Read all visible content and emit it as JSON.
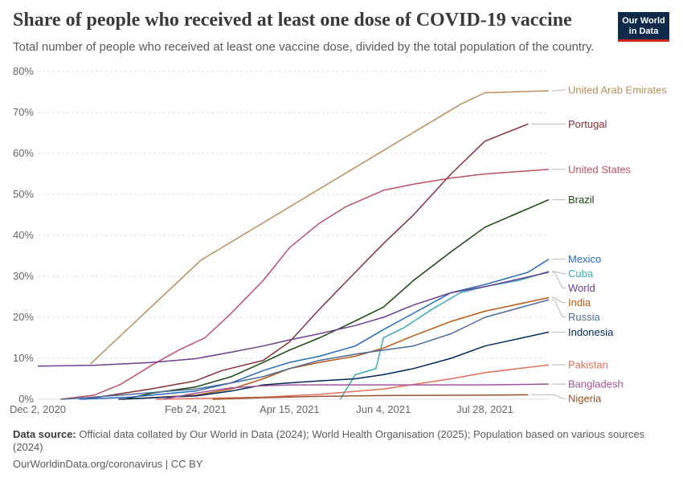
{
  "header": {
    "title": "Share of people who received at least one dose of COVID-19 vaccine",
    "subtitle": "Total number of people who received at least one vaccine dose, divided by the total population of the country.",
    "logo_line1": "Our World",
    "logo_line2": "in Data"
  },
  "footer": {
    "source_label": "Data source:",
    "source_text": "Official data collated by Our World in Data (2024); World Health Organisation (2025); Population based on various sources (2024)",
    "credit": "OurWorldinData.org/coronavirus | CC BY"
  },
  "colors": {
    "grid": "#dddddd",
    "axis_text": "#666666",
    "leader_line": "#bbbbbb"
  },
  "chart_data": {
    "type": "line",
    "title": "Share of people who received at least one dose of COVID-19 vaccine",
    "subtitle": "Total number of people who received at least one vaccine dose, divided by the total population of the country.",
    "x_start": "2020-12-02",
    "x_end": "2021-08-31",
    "x_ticks": [
      {
        "date": "2020-12-02",
        "label": "Dec 2, 2020"
      },
      {
        "date": "2021-02-24",
        "label": "Feb 24, 2021"
      },
      {
        "date": "2021-04-15",
        "label": "Apr 15, 2021"
      },
      {
        "date": "2021-06-04",
        "label": "Jun 4, 2021"
      },
      {
        "date": "2021-07-28",
        "label": "Jul 28, 2021"
      }
    ],
    "ylim": [
      0,
      80
    ],
    "y_ticks": [
      0,
      10,
      20,
      30,
      40,
      50,
      60,
      70,
      80
    ],
    "y_tick_suffix": "%",
    "grid": true,
    "legend": "right",
    "series": [
      {
        "name": "United Arab Emirates",
        "color": "#bc8e5a",
        "label_y": 75.5,
        "points": [
          [
            "2020-12-30",
            8.6
          ],
          [
            "2021-02-27",
            34
          ],
          [
            "2021-07-15",
            72
          ],
          [
            "2021-07-28",
            74.8
          ],
          [
            "2021-08-31",
            75.3
          ]
        ]
      },
      {
        "name": "Portugal",
        "color": "#883039",
        "label_y": 67.2,
        "points": [
          [
            "2020-12-27",
            0
          ],
          [
            "2021-01-10",
            1
          ],
          [
            "2021-01-31",
            2.5
          ],
          [
            "2021-02-24",
            4.5
          ],
          [
            "2021-03-10",
            7
          ],
          [
            "2021-04-01",
            9.5
          ],
          [
            "2021-04-15",
            14
          ],
          [
            "2021-05-01",
            22
          ],
          [
            "2021-05-20",
            31
          ],
          [
            "2021-06-04",
            38
          ],
          [
            "2021-06-20",
            45
          ],
          [
            "2021-07-10",
            55
          ],
          [
            "2021-07-28",
            63
          ],
          [
            "2021-08-20",
            67.2
          ]
        ]
      },
      {
        "name": "United States",
        "color": "#c15065",
        "label_y": 56.1,
        "points": [
          [
            "2020-12-14",
            0
          ],
          [
            "2021-01-01",
            1
          ],
          [
            "2021-01-15",
            3.6
          ],
          [
            "2021-02-01",
            8.4
          ],
          [
            "2021-02-15",
            12
          ],
          [
            "2021-03-01",
            15
          ],
          [
            "2021-03-15",
            21
          ],
          [
            "2021-04-01",
            29
          ],
          [
            "2021-04-15",
            37
          ],
          [
            "2021-05-01",
            43
          ],
          [
            "2021-05-15",
            47
          ],
          [
            "2021-06-04",
            51
          ],
          [
            "2021-06-20",
            52.5
          ],
          [
            "2021-07-10",
            54
          ],
          [
            "2021-07-28",
            55
          ],
          [
            "2021-08-31",
            56.1
          ]
        ]
      },
      {
        "name": "Brazil",
        "color": "#18470f",
        "label_y": 48.7,
        "points": [
          [
            "2021-01-17",
            0
          ],
          [
            "2021-02-01",
            1.5
          ],
          [
            "2021-02-24",
            3
          ],
          [
            "2021-03-15",
            5.5
          ],
          [
            "2021-04-01",
            9
          ],
          [
            "2021-04-15",
            12
          ],
          [
            "2021-05-01",
            15
          ],
          [
            "2021-05-15",
            18
          ],
          [
            "2021-06-04",
            22.5
          ],
          [
            "2021-06-20",
            29
          ],
          [
            "2021-07-10",
            36
          ],
          [
            "2021-07-28",
            42
          ],
          [
            "2021-08-31",
            48.7
          ]
        ]
      },
      {
        "name": "Mexico",
        "color": "#286bbb",
        "label_y": 34.2,
        "points": [
          [
            "2020-12-24",
            0
          ],
          [
            "2021-01-20",
            0.5
          ],
          [
            "2021-02-24",
            2
          ],
          [
            "2021-03-15",
            4
          ],
          [
            "2021-04-01",
            7
          ],
          [
            "2021-04-15",
            9
          ],
          [
            "2021-05-01",
            10.5
          ],
          [
            "2021-05-20",
            13
          ],
          [
            "2021-06-04",
            17
          ],
          [
            "2021-06-20",
            21
          ],
          [
            "2021-07-10",
            26
          ],
          [
            "2021-07-28",
            28
          ],
          [
            "2021-08-20",
            31
          ],
          [
            "2021-08-31",
            34.2
          ]
        ]
      },
      {
        "name": "Cuba",
        "color": "#38aaba",
        "label_y": 31.5,
        "points": [
          [
            "2021-05-12",
            0
          ],
          [
            "2021-05-20",
            6
          ],
          [
            "2021-05-31",
            7.5
          ],
          [
            "2021-06-04",
            15
          ],
          [
            "2021-06-15",
            17.5
          ],
          [
            "2021-06-30",
            22
          ],
          [
            "2021-07-15",
            26
          ],
          [
            "2021-07-28",
            27.5
          ],
          [
            "2021-08-15",
            29
          ],
          [
            "2021-08-31",
            31.2
          ]
        ]
      },
      {
        "name": "World",
        "color": "#6d3e91",
        "label_y": 31.0,
        "points": [
          [
            "2020-12-02",
            8.1
          ],
          [
            "2021-01-01",
            8.3
          ],
          [
            "2021-02-01",
            9
          ],
          [
            "2021-02-24",
            9.9
          ],
          [
            "2021-03-15",
            11.5
          ],
          [
            "2021-04-01",
            13
          ],
          [
            "2021-04-15",
            14.5
          ],
          [
            "2021-05-01",
            16
          ],
          [
            "2021-05-20",
            18
          ],
          [
            "2021-06-04",
            20
          ],
          [
            "2021-06-20",
            23
          ],
          [
            "2021-07-10",
            26
          ],
          [
            "2021-07-28",
            27.5
          ],
          [
            "2021-08-31",
            31
          ]
        ]
      },
      {
        "name": "India",
        "color": "#be5915",
        "label_y": 24.8,
        "points": [
          [
            "2021-01-16",
            0
          ],
          [
            "2021-02-24",
            1
          ],
          [
            "2021-03-15",
            2.5
          ],
          [
            "2021-04-01",
            5
          ],
          [
            "2021-04-15",
            7.5
          ],
          [
            "2021-05-01",
            9
          ],
          [
            "2021-05-20",
            10.5
          ],
          [
            "2021-06-04",
            12.5
          ],
          [
            "2021-06-20",
            15.5
          ],
          [
            "2021-07-10",
            19
          ],
          [
            "2021-07-28",
            21.5
          ],
          [
            "2021-08-31",
            24.8
          ]
        ]
      },
      {
        "name": "Russia",
        "color": "#4c6a9c",
        "label_y": 24.3,
        "points": [
          [
            "2020-12-15",
            0
          ],
          [
            "2021-01-15",
            1
          ],
          [
            "2021-02-24",
            2.5
          ],
          [
            "2021-03-15",
            4
          ],
          [
            "2021-04-01",
            5.5
          ],
          [
            "2021-04-15",
            7.5
          ],
          [
            "2021-05-01",
            9.5
          ],
          [
            "2021-05-20",
            11
          ],
          [
            "2021-06-04",
            12
          ],
          [
            "2021-06-20",
            13
          ],
          [
            "2021-07-10",
            16
          ],
          [
            "2021-07-28",
            20
          ],
          [
            "2021-08-31",
            24.3
          ]
        ]
      },
      {
        "name": "Indonesia",
        "color": "#00295b",
        "label_y": 16.4,
        "points": [
          [
            "2021-01-14",
            0
          ],
          [
            "2021-02-24",
            0.8
          ],
          [
            "2021-03-15",
            2
          ],
          [
            "2021-04-01",
            3.5
          ],
          [
            "2021-04-15",
            4
          ],
          [
            "2021-05-01",
            4.5
          ],
          [
            "2021-05-20",
            5
          ],
          [
            "2021-06-04",
            6
          ],
          [
            "2021-06-20",
            7.5
          ],
          [
            "2021-07-10",
            10
          ],
          [
            "2021-07-28",
            13
          ],
          [
            "2021-08-31",
            16.4
          ]
        ]
      },
      {
        "name": "Pakistan",
        "color": "#e56e5a",
        "label_y": 8.4,
        "points": [
          [
            "2021-02-03",
            0
          ],
          [
            "2021-04-01",
            0.5
          ],
          [
            "2021-05-01",
            1.2
          ],
          [
            "2021-06-04",
            2.5
          ],
          [
            "2021-07-10",
            5
          ],
          [
            "2021-07-28",
            6.5
          ],
          [
            "2021-08-31",
            8.4
          ]
        ]
      },
      {
        "name": "Bangladesh",
        "color": "#a2559c",
        "label_y": 3.7,
        "points": [
          [
            "2021-02-07",
            0
          ],
          [
            "2021-02-24",
            1.5
          ],
          [
            "2021-03-15",
            2.8
          ],
          [
            "2021-04-01",
            3.3
          ],
          [
            "2021-04-15",
            3.5
          ],
          [
            "2021-06-04",
            3.5
          ],
          [
            "2021-07-28",
            3.5
          ],
          [
            "2021-08-31",
            3.7
          ]
        ]
      },
      {
        "name": "Nigeria",
        "color": "#9a5129",
        "label_y": 1.1,
        "points": [
          [
            "2021-03-05",
            0
          ],
          [
            "2021-04-01",
            0.4
          ],
          [
            "2021-05-01",
            0.7
          ],
          [
            "2021-06-04",
            0.9
          ],
          [
            "2021-07-28",
            1
          ],
          [
            "2021-08-20",
            1.1
          ]
        ]
      }
    ]
  }
}
